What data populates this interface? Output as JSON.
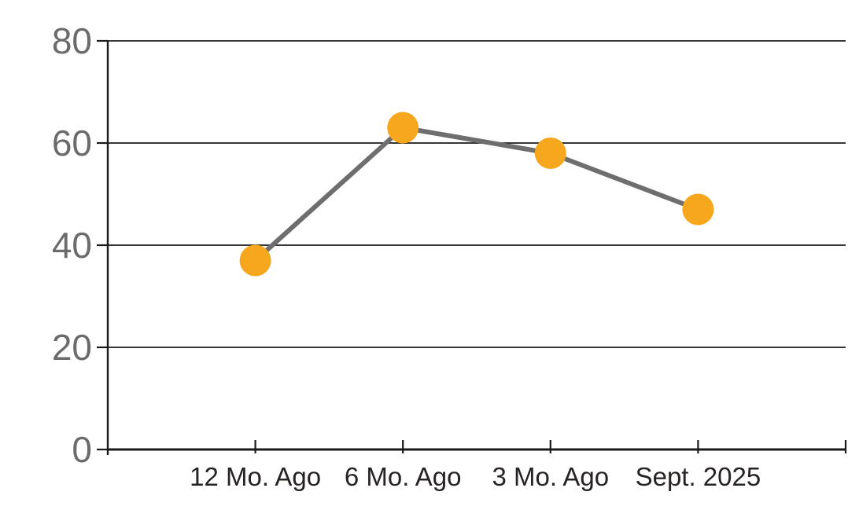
{
  "chart_data": {
    "type": "line",
    "categories": [
      "12 Mo. Ago",
      "6 Mo. Ago",
      "3 Mo. Ago",
      "Sept. 2025"
    ],
    "values": [
      37,
      63,
      58,
      47
    ],
    "title": "",
    "xlabel": "",
    "ylabel": "",
    "ylim": [
      0,
      80
    ],
    "yticks": [
      0,
      20,
      40,
      60,
      80
    ],
    "grid": true,
    "legend_position": "none",
    "colors": {
      "marker": "#F6A71D",
      "line": "#6E6E6E",
      "grid": "#1a1a1a",
      "axis": "#1a1a1a",
      "y_tick_label": "#6b6b6b",
      "x_tick_label": "#262322",
      "background": "#ffffff"
    }
  }
}
